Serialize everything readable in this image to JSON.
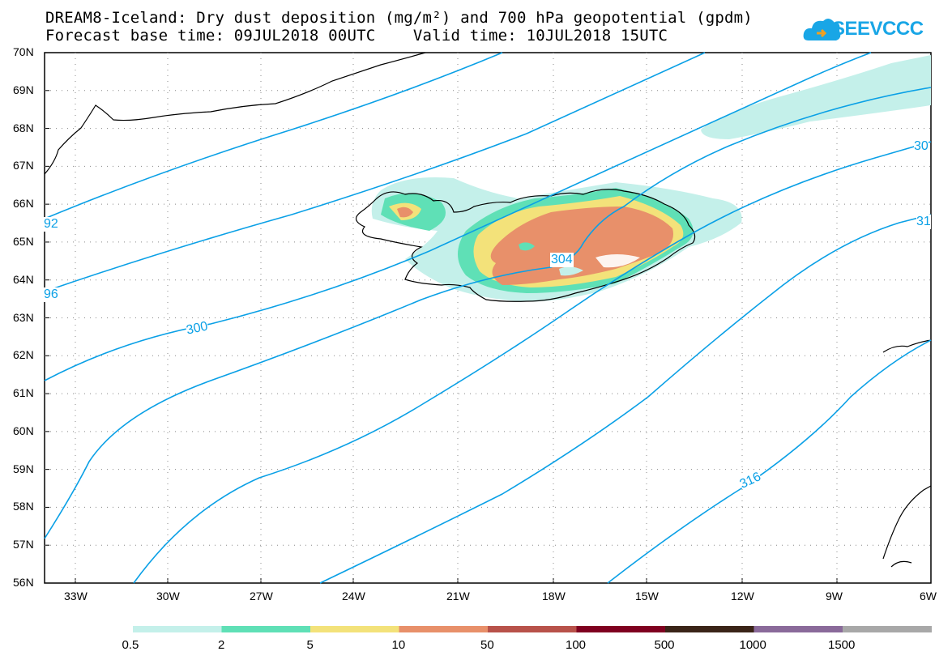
{
  "header": {
    "title": "DREAM8-Iceland: Dry dust deposition (mg/m²) and 700 hPa geopotential (gpdm)",
    "subtitle": "Forecast base time: 09JUL2018 00UTC    Valid time: 10JUL2018 15UTC"
  },
  "logo": {
    "text": "SEEVCCC",
    "icon": "cloud-logo-icon",
    "color": "#19a6e6"
  },
  "axes": {
    "lat_labels": [
      "70N",
      "69N",
      "68N",
      "67N",
      "66N",
      "65N",
      "64N",
      "63N",
      "62N",
      "61N",
      "60N",
      "59N",
      "58N",
      "57N",
      "56N"
    ],
    "lon_labels": [
      "33W",
      "30W",
      "27W",
      "24W",
      "21W",
      "18W",
      "15W",
      "12W",
      "9W",
      "6W"
    ]
  },
  "contours": {
    "color": "#0aa0e6",
    "labels": [
      "92",
      "96",
      "300",
      "304",
      "30",
      "31",
      "316"
    ]
  },
  "legend": {
    "colors": [
      "#c4f0ea",
      "#5fe0b6",
      "#f3e27a",
      "#e8906a",
      "#b8524a",
      "#7f0020",
      "#3a2418",
      "#8a6a9a",
      "#a8a8a8"
    ],
    "labels": [
      "0.5",
      "2",
      "5",
      "10",
      "50",
      "100",
      "500",
      "1000",
      "1500"
    ]
  }
}
